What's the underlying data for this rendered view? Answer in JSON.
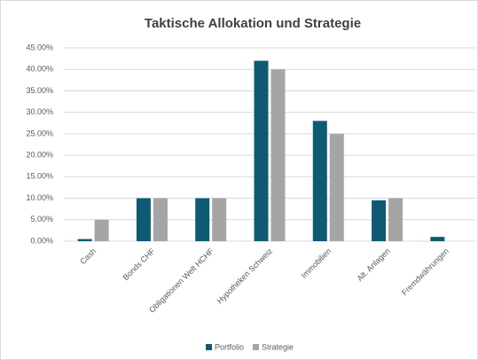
{
  "chart_data": {
    "type": "bar",
    "title": "Taktische Allokation und Strategie",
    "categories": [
      "Cash",
      "Bonds CHF",
      "Obligationen Welt HCHF",
      "Hypotheken Schweiz",
      "Immobilien",
      "Alt. Anlagen",
      "Fremdwährungen"
    ],
    "series": [
      {
        "name": "Portfolio",
        "color": "#0e5a73",
        "values": [
          0.5,
          10,
          10,
          42,
          28,
          9.5,
          1
        ]
      },
      {
        "name": "Strategie",
        "color": "#a5a5a5",
        "values": [
          5,
          10,
          10,
          40,
          25,
          10,
          0
        ]
      }
    ],
    "ylim": [
      0,
      45
    ],
    "yticks": [
      {
        "value": 0,
        "label": "0.00%"
      },
      {
        "value": 5,
        "label": "5.00%"
      },
      {
        "value": 10,
        "label": "10.00%"
      },
      {
        "value": 15,
        "label": "15.00%"
      },
      {
        "value": 20,
        "label": "20.00%"
      },
      {
        "value": 25,
        "label": "25.00%"
      },
      {
        "value": 30,
        "label": "30.00%"
      },
      {
        "value": 35,
        "label": "35.00%"
      },
      {
        "value": 40,
        "label": "40.00%"
      },
      {
        "value": 45,
        "label": "45.00%"
      }
    ],
    "grid": true,
    "legend": "bottom"
  }
}
